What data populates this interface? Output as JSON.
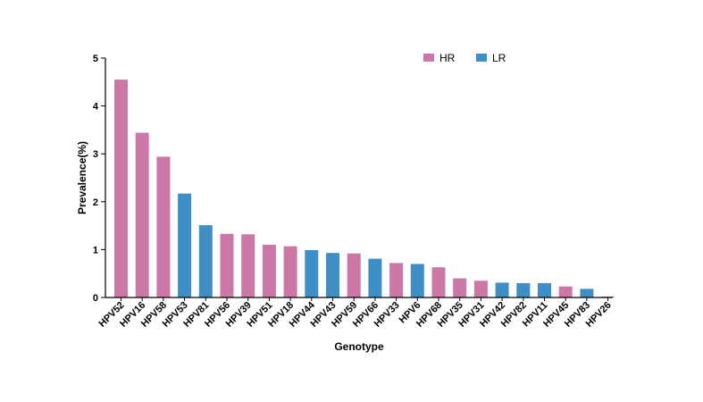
{
  "chart_data": {
    "type": "bar",
    "title": "",
    "xlabel": "Genotype",
    "ylabel": "Prevalence(%)",
    "ylim": [
      0,
      5
    ],
    "yticks": [
      "0",
      "1",
      "2",
      "3",
      "4",
      "5"
    ],
    "grid": false,
    "legend_position": "top-right",
    "groups": [
      {
        "name": "HR",
        "color": "#cc78a6"
      },
      {
        "name": "LR",
        "color": "#3f8fc6"
      }
    ],
    "categories": [
      "HPV52",
      "HPV16",
      "HPV58",
      "HPV53",
      "HPV81",
      "HPV56",
      "HPV39",
      "HPV51",
      "HPV18",
      "HPV44",
      "HPV43",
      "HPV59",
      "HPV66",
      "HPV33",
      "HPV6",
      "HPV68",
      "HPV35",
      "HPV31",
      "HPV42",
      "HPV82",
      "HPV11",
      "HPV45",
      "HPV83",
      "HPV26"
    ],
    "values": [
      4.55,
      3.44,
      2.94,
      2.17,
      1.51,
      1.33,
      1.32,
      1.1,
      1.07,
      0.99,
      0.93,
      0.92,
      0.81,
      0.72,
      0.7,
      0.63,
      0.4,
      0.35,
      0.31,
      0.3,
      0.3,
      0.23,
      0.18,
      0.02
    ],
    "group_of_category": [
      "HR",
      "HR",
      "HR",
      "LR",
      "LR",
      "HR",
      "HR",
      "HR",
      "HR",
      "LR",
      "LR",
      "HR",
      "LR",
      "HR",
      "LR",
      "HR",
      "HR",
      "HR",
      "LR",
      "LR",
      "LR",
      "HR",
      "LR",
      "HR"
    ]
  }
}
